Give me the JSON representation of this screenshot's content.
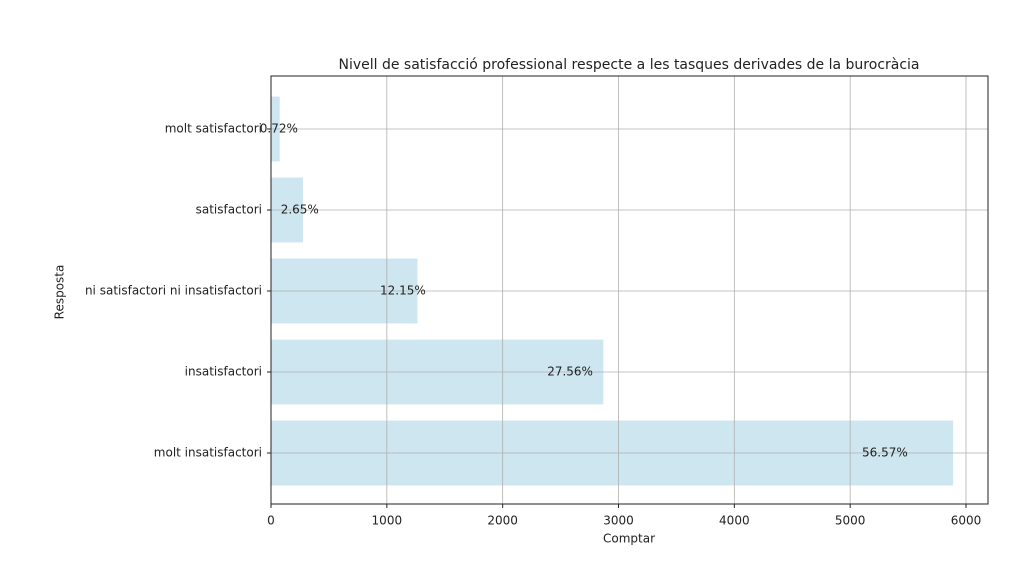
{
  "chart_data": {
    "type": "barh",
    "title": "Nivell de satisfacció professional respecte a les tasques derivades de la burocràcia",
    "xlabel": "Comptar",
    "ylabel": "Resposta",
    "categories": [
      "molt satisfactori",
      "satisfactori",
      "ni satisfactori ni insatisfactori",
      "insatisfactori",
      "molt insatisfactori"
    ],
    "values": [
      75,
      276,
      1265,
      2869,
      5889
    ],
    "bar_labels": [
      "0.72%",
      "2.65%",
      "12.15%",
      "27.56%",
      "56.57%"
    ],
    "color": "#cde6f0",
    "xlim": [
      0,
      6190
    ],
    "xticks": [
      0,
      1000,
      2000,
      3000,
      4000,
      5000,
      6000
    ],
    "grid": true
  }
}
